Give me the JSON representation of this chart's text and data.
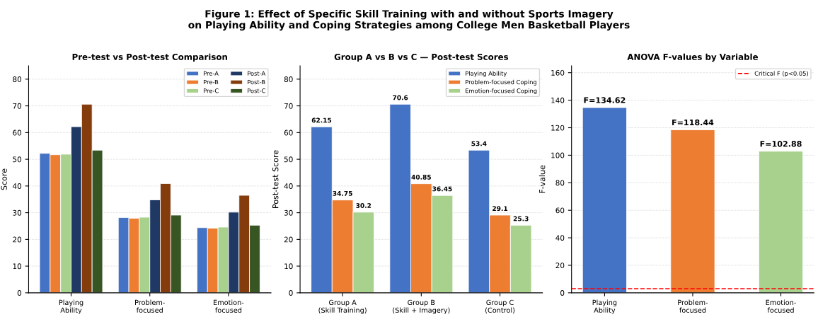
{
  "chart_data": [
    {
      "type": "bar",
      "title": "Pre-test vs Post-test Comparison",
      "ylabel": "Score",
      "annotations": [
        "Figure 1: Effect of Specific Skill Training with and without Sports Imagery\non Playing Ability and Coping Strategies among College Men Basketball Players"
      ],
      "categories": [
        "Playing\nAbility",
        "Problem-\nfocused",
        "Emotion-\nfocused"
      ],
      "series": [
        {
          "name": "Pre-A",
          "color": "#4472c4",
          "values": [
            52.2,
            28.2,
            24.4
          ]
        },
        {
          "name": "Pre-B",
          "color": "#ed7d31",
          "values": [
            51.7,
            27.9,
            24.2
          ]
        },
        {
          "name": "Pre-C",
          "color": "#a9d18e",
          "values": [
            51.9,
            28.3,
            24.6
          ]
        },
        {
          "name": "Post-A",
          "color": "#1f3864",
          "values": [
            62.2,
            34.8,
            30.2
          ]
        },
        {
          "name": "Post-B",
          "color": "#843c0c",
          "values": [
            70.6,
            40.9,
            36.5
          ]
        },
        {
          "name": "Post-C",
          "color": "#375623",
          "values": [
            53.4,
            29.1,
            25.3
          ]
        }
      ],
      "ylim": [
        0,
        85
      ],
      "yticks": [
        0,
        10,
        20,
        30,
        40,
        50,
        60,
        70,
        80
      ],
      "grid": "y",
      "legend": "top right"
    },
    {
      "type": "bar",
      "title": "Group A vs B vs C — Post-test Scores",
      "ylabel": "Post-test Score",
      "categories": [
        "Group A\n(Skill Training)",
        "Group B\n(Skill + Imagery)",
        "Group C\n(Control)"
      ],
      "series": [
        {
          "name": "Playing Ability",
          "color": "#4472c4",
          "values": [
            62.15,
            70.6,
            53.4
          ]
        },
        {
          "name": "Problem-focused Coping",
          "color": "#ed7d31",
          "values": [
            34.75,
            40.85,
            29.1
          ]
        },
        {
          "name": "Emotion-focused Coping",
          "color": "#a9d18e",
          "values": [
            30.2,
            36.45,
            25.3
          ]
        }
      ],
      "ylim": [
        0,
        85
      ],
      "yticks": [
        0,
        10,
        20,
        30,
        40,
        50,
        60,
        70,
        80
      ],
      "grid": "y",
      "legend": "top right",
      "data_labels": true
    },
    {
      "type": "bar",
      "title": "ANOVA F-values by Variable",
      "ylabel": "F-value",
      "categories": [
        "Playing\nAbility",
        "Problem-\nfocused",
        "Emotion-\nfocused"
      ],
      "values": [
        134.62,
        118.44,
        102.88
      ],
      "colors": [
        "#4472c4",
        "#ed7d31",
        "#a9d18e"
      ],
      "value_labels": [
        "F=134.62",
        "F=118.44",
        "F=102.88"
      ],
      "ref_lines": [
        {
          "axis": "y",
          "value": 3,
          "label": "Critical F (p<0.05)",
          "color": "#ff0000",
          "line_style": "dashed"
        }
      ],
      "ylim": [
        0,
        165
      ],
      "yticks": [
        0,
        20,
        40,
        60,
        80,
        100,
        120,
        140,
        160
      ],
      "grid": "y",
      "legend": "top right"
    }
  ]
}
